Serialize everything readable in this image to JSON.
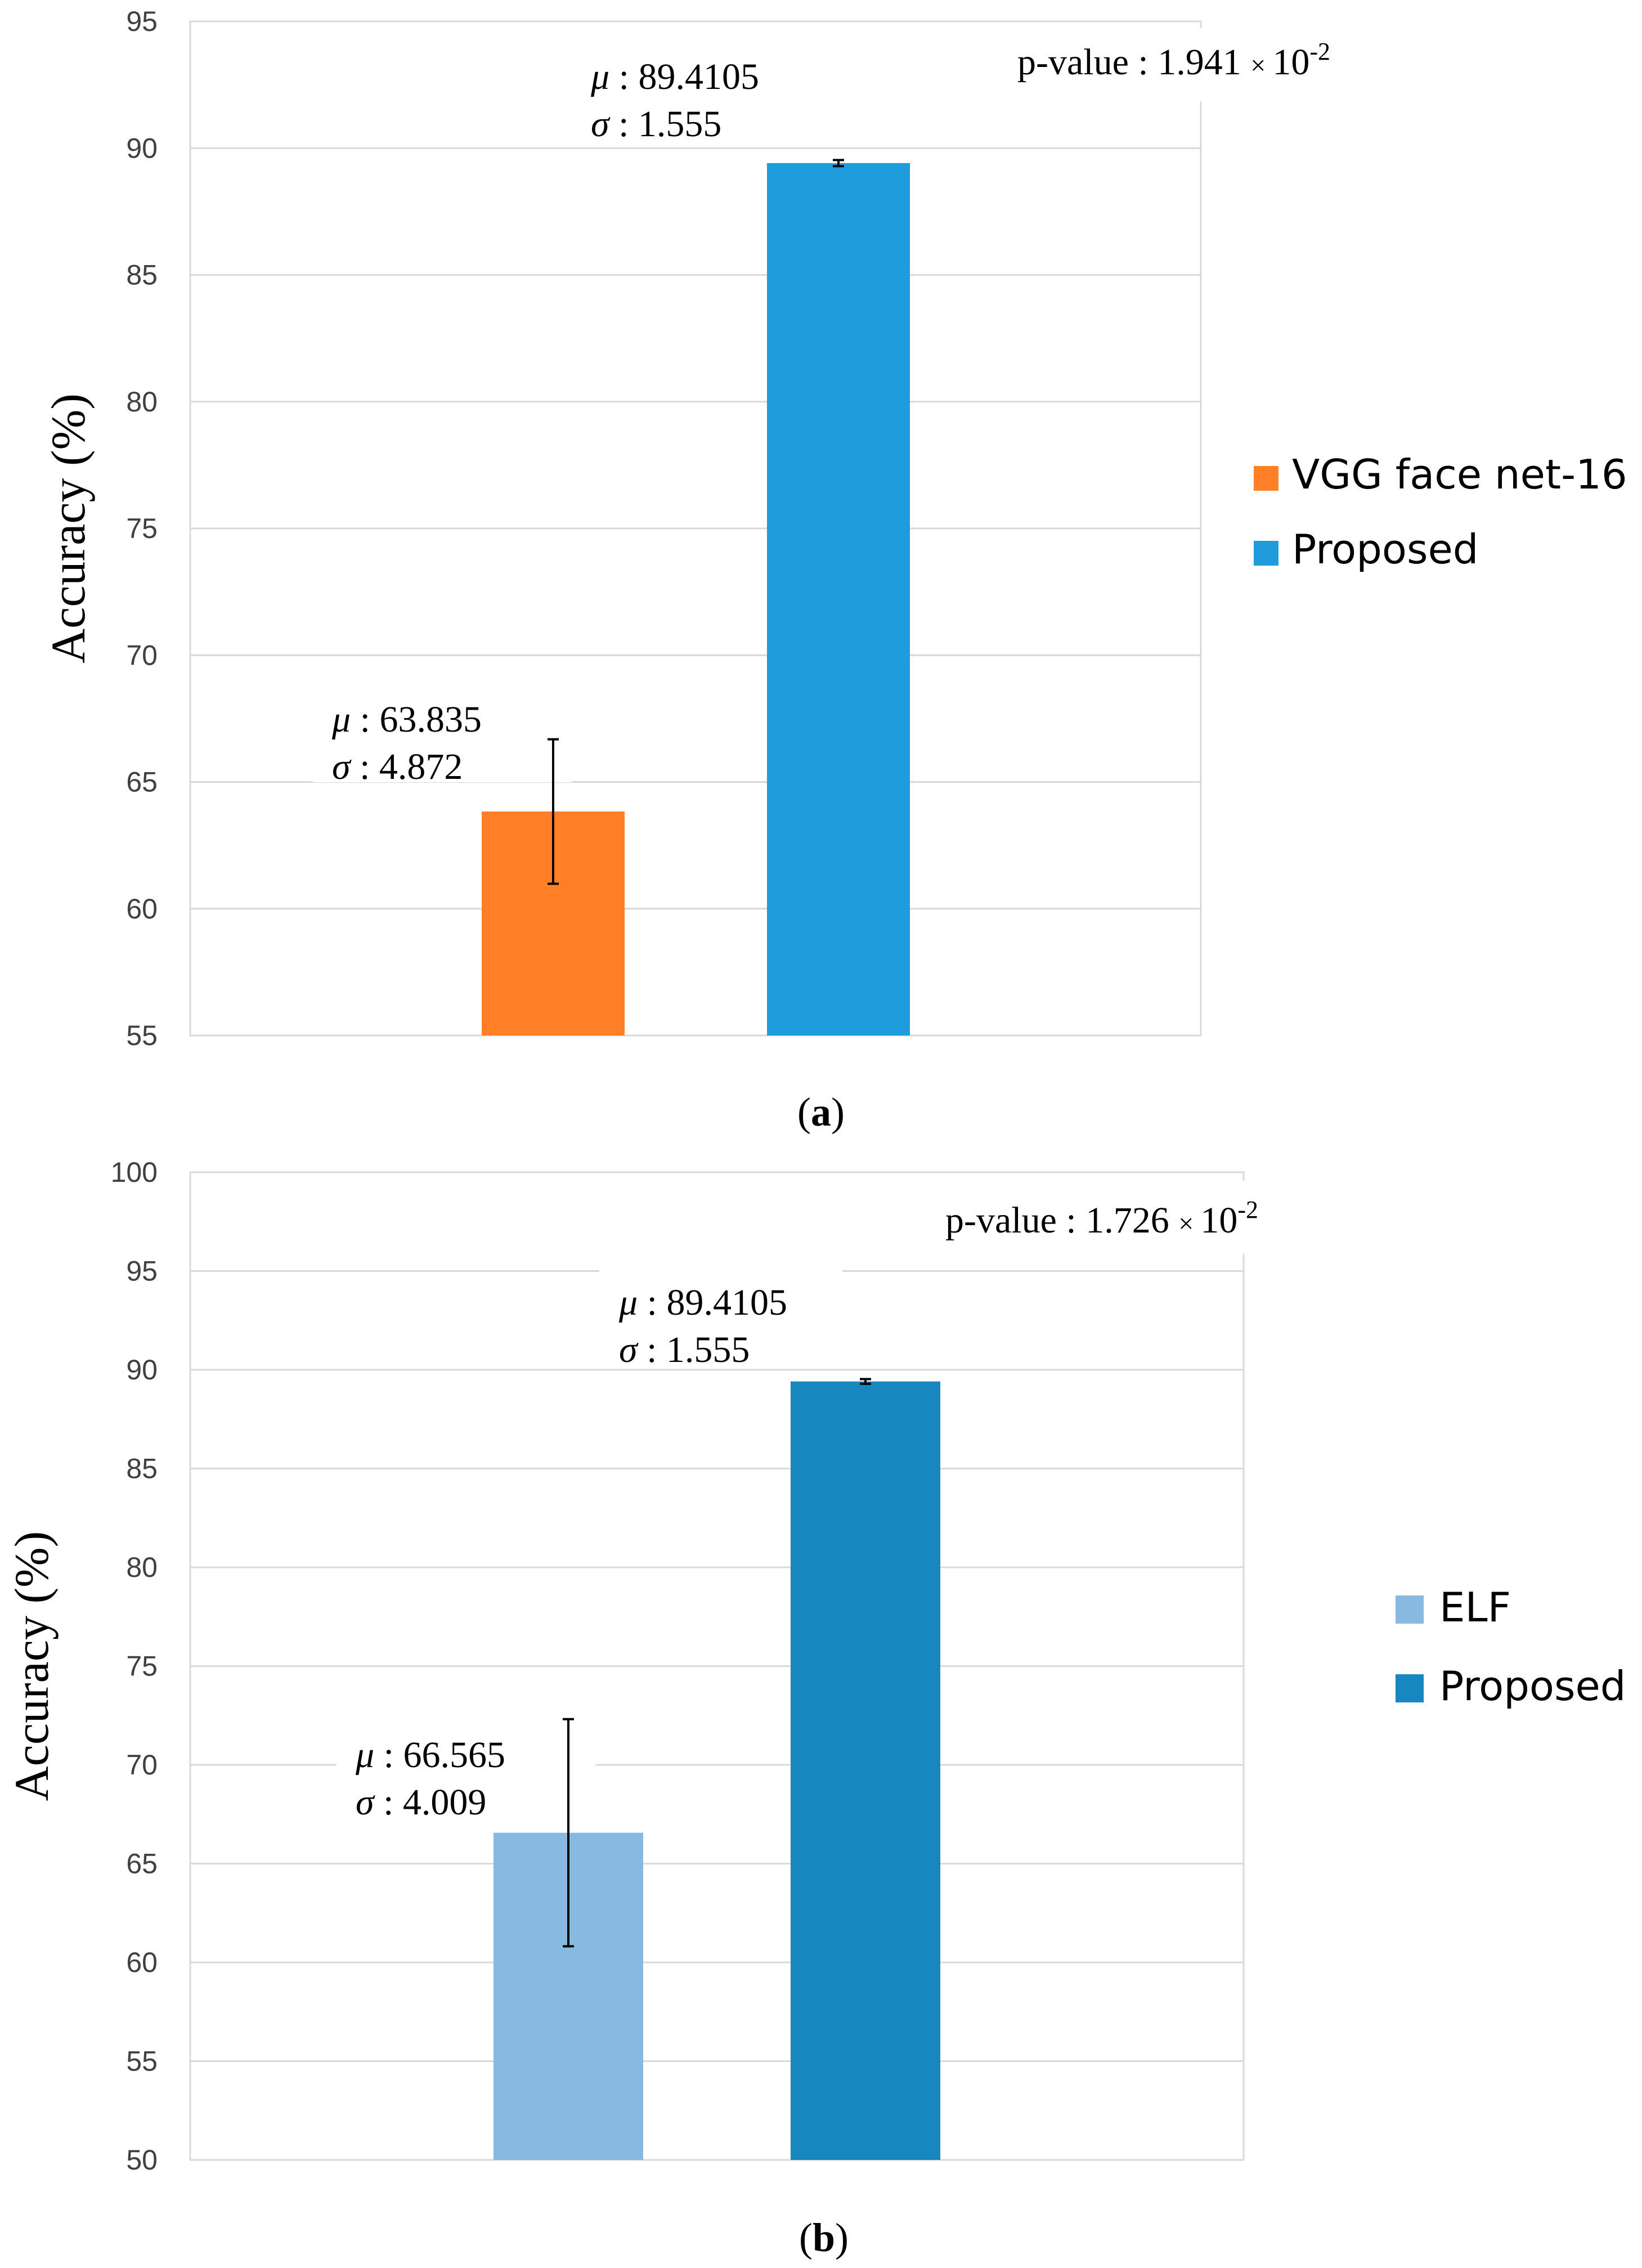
{
  "chart_data": [
    {
      "type": "bar",
      "panel": "a",
      "caption_open": "(",
      "caption_letter": "a",
      "caption_close": ")",
      "ylabel": "Accuracy (%)",
      "ylim": [
        55,
        95
      ],
      "yticks": [
        55,
        60,
        65,
        70,
        75,
        80,
        85,
        90,
        95
      ],
      "grid": true,
      "legend_position": "right",
      "p_value": {
        "label": "p-value : 1.941",
        "times": "×",
        "base": "10",
        "exponent": "-2"
      },
      "series": [
        {
          "name": "VGG face net-16",
          "value": 63.835,
          "error": 2.85,
          "color": "#FF7F27",
          "mu_label": "μ",
          "mu_value": ": 63.835",
          "sigma_label": "σ",
          "sigma_value": ": 4.872"
        },
        {
          "name": "Proposed",
          "value": 89.4105,
          "error": 0.12,
          "color": "#1E9CDC",
          "mu_label": "μ",
          "mu_value": ": 89.4105",
          "sigma_label": "σ",
          "sigma_value": ": 1.555"
        }
      ]
    },
    {
      "type": "bar",
      "panel": "b",
      "caption_open": "(",
      "caption_letter": "b",
      "caption_close": ")",
      "ylabel": "Accuracy (%)",
      "ylim": [
        50,
        100
      ],
      "yticks": [
        50,
        55,
        60,
        65,
        70,
        75,
        80,
        85,
        90,
        95,
        100
      ],
      "grid": true,
      "legend_position": "right",
      "p_value": {
        "label": "p-value : 1.726",
        "times": "×",
        "base": "10",
        "exponent": "-2"
      },
      "series": [
        {
          "name": "ELF",
          "value": 66.565,
          "error": 5.75,
          "color": "#88B9E0",
          "mu_label": "μ",
          "mu_value": ": 66.565",
          "sigma_label": "σ",
          "sigma_value": ": 4.009"
        },
        {
          "name": "Proposed",
          "value": 89.4105,
          "error": 0.12,
          "color": "#1688BF",
          "mu_label": "μ",
          "mu_value": ": 89.4105",
          "sigma_label": "σ",
          "sigma_value": ": 1.555"
        }
      ]
    }
  ]
}
